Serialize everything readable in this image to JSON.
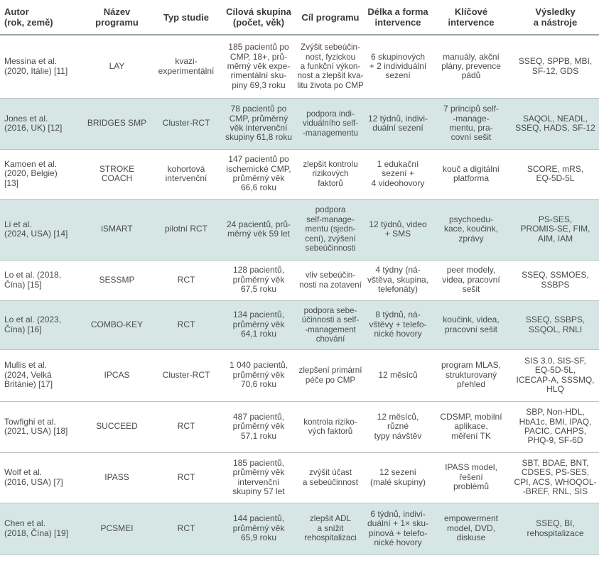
{
  "table": {
    "headers": [
      "Autor\n(rok, země)",
      "Název\nprogramu",
      "Typ studie",
      "Cílová skupina\n(počet, věk)",
      "Cíl programu",
      "Délka a forma\nintervence",
      "Klíčové\nintervence",
      "Výsledky\na nástroje"
    ],
    "rows": [
      {
        "author": "Messina et al.\n(2020, Itálie) [11]",
        "program": "LAY",
        "study_type": "kvazi-\nexperimentální",
        "target_group": "185 pacientů po\nCMP, 18+, prů-\nměrný věk expe-\nrimentální sku-\npiny 69,3 roku",
        "goal": "Zvýšit sebeúčin-\nnost, fyzickou\na funkční výkon-\nnost a zlepšit kva-\nlitu života po CMP",
        "duration": "6 skupinových\n+ 2 individuální\nsezení",
        "interventions": "manuály, akční\nplány, prevence\npádů",
        "results": "SSEQ, SPPB, MBI,\nSF-12, GDS"
      },
      {
        "author": "Jones et al.\n(2016, UK) [12]",
        "program": "BRIDGES SMP",
        "study_type": "Cluster-RCT",
        "target_group": "78 pacientů po\nCMP, průměrný\nvěk intervenční\nskupiny 61,8 roku",
        "goal": "podpora indi-\nviduálního self-\n-managementu",
        "duration": "12 týdnů, indivi-\nduální sezení",
        "interventions": "7 principů self-\n-manage-\nmentu, pra-\ncovní sešit",
        "results": "SAQOL, NEADL,\nSSEQ, HADS, SF-12"
      },
      {
        "author": "Kamoen et al.\n(2020, Belgie)\n[13]",
        "program": "STROKE COACH",
        "study_type": "kohortová\nintervenční",
        "target_group": "147 pacientů po\nischemické CMP,\nprůměrný věk\n66,6 roku",
        "goal": "zlepšit kontrolu\nrizikových\nfaktorů",
        "duration": "1 edukační\nsezení +\n4 videohovory",
        "interventions": "kouč a digitální\nplatforma",
        "results": "SCORE, mRS,\nEQ-5D-5L"
      },
      {
        "author": "Li et al.\n(2024, USA) [14]",
        "program": "iSMART",
        "study_type": "pilotní RCT",
        "target_group": "24 pacientů, prů-\nměrný věk 59 let",
        "goal": "podpora\nself-manage-\nmentu (sjedn-\ncení), zvýšení\nsebeúčinnosti",
        "duration": "12 týdnů, video\n+ SMS",
        "interventions": "psychoedu-\nkace, koučink,\nzprávy",
        "results": "PS-SES,\nPROMIS-SE, FIM,\nAIM, IAM"
      },
      {
        "author": "Lo et al. (2018,\nČína) [15]",
        "program": "SESSMP",
        "study_type": "RCT",
        "target_group": "128 pacientů,\nprůměrný věk\n67,5 roku",
        "goal": "vliv sebeúčin-\nnosti na zotavení",
        "duration": "4 týdny (ná-\nvštěva, skupina,\ntelefonáty)",
        "interventions": "peer modely,\nvidea, pracovní\nsešit",
        "results": "SSEQ, SSMOES,\nSSBPS"
      },
      {
        "author": "Lo et al. (2023,\nČína) [16]",
        "program": "COMBO-KEY",
        "study_type": "RCT",
        "target_group": "134 pacientů,\nprůměrný věk\n64,1 roku",
        "goal": "podpora sebe-\núčinnosti a self-\n-management\nchování",
        "duration": "8 týdnů, ná-\nvštěvy + telefo-\nnické hovory",
        "interventions": "koučink, videa,\npracovní sešit",
        "results": "SSEQ, SSBPS,\nSSQOL, RNLI"
      },
      {
        "author": "Mullis et al.\n(2024, Velká\nBritánie) [17]",
        "program": "IPCAS",
        "study_type": "Cluster-RCT",
        "target_group": "1 040 pacientů,\nprůměrný věk\n70,6 roku",
        "goal": "zlepšení primární\npéče po CMP",
        "duration": "12 měsíců",
        "interventions": "program MLAS,\nstrukturovaný\npřehled",
        "results": "SIS 3.0, SIS-SF,\nEQ-5D-5L,\nICECAP-A, SSSMQ,\nHLQ"
      },
      {
        "author": "Towfighi et al.\n(2021, USA) [18]",
        "program": "SUCCEED",
        "study_type": "RCT",
        "target_group": "487 pacientů,\nprůměrný věk\n57,1 roku",
        "goal": "kontrola riziko-\nvých faktorů",
        "duration": "12 měsíců, různé\ntypy návštěv",
        "interventions": "CDSMP, mobilní\naplikace,\nměření TK",
        "results": "SBP, Non-HDL,\nHbA1c, BMI, IPAQ,\nPACIC, CAHPS,\nPHQ-9, SF-6D"
      },
      {
        "author": "Wolf et al.\n(2016, USA) [7]",
        "program": "IPASS",
        "study_type": "RCT",
        "target_group": "185 pacientů,\nprůměrný věk\nintervenční\nskupiny 57 let",
        "goal": "zvýšit účast\na sebeúčinnost",
        "duration": "12 sezení\n(malé skupiny)",
        "interventions": "IPASS model,\nřešení\nproblémů",
        "results": "SBT, BDAE, BNT,\nCDSES, PS-SES,\nCPI, ACS, WHOQOL-\n-BREF, RNL, SIS"
      },
      {
        "author": "Chen et al.\n(2018, Čína) [19]",
        "program": "PCSMEI",
        "study_type": "RCT",
        "target_group": "144 pacientů,\nprůměrný věk\n65,9 roku",
        "goal": "zlepšit ADL\na snížit\nrehospitalizaci",
        "duration": "6 týdnů, indivi-\nduální + 1× sku-\npinová + telefo-\nnické hovory",
        "interventions": "empowerment\nmodel, DVD,\ndiskuse",
        "results": "SSEQ, BI,\nrehospitalizace"
      }
    ]
  }
}
